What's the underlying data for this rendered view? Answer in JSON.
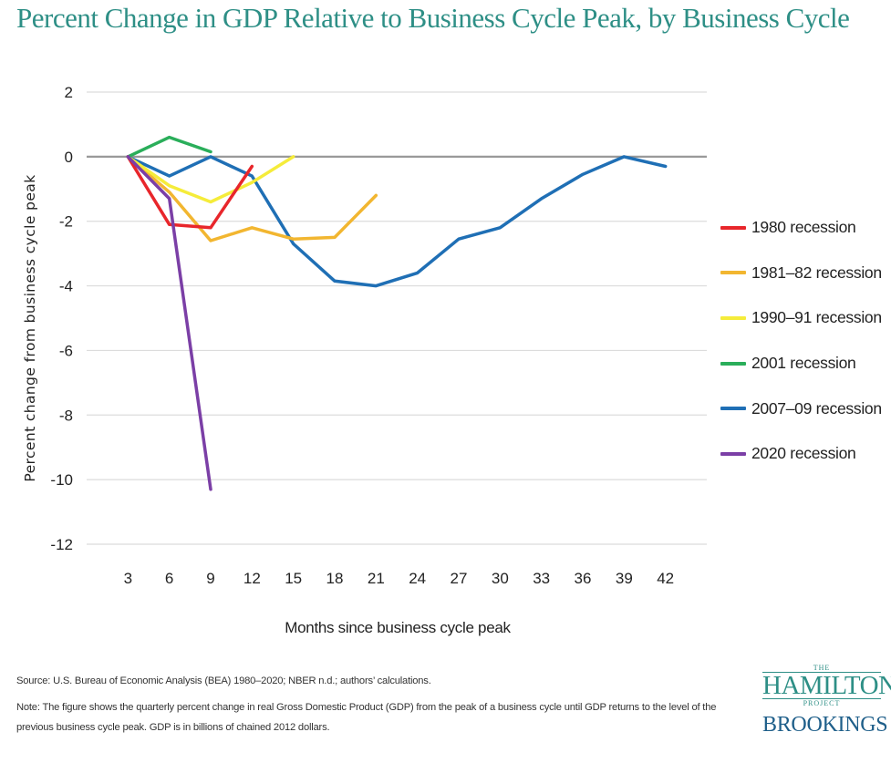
{
  "title": "Percent Change in GDP Relative to Business Cycle Peak, by Business Cycle",
  "chart_data": {
    "type": "line",
    "title": "Percent Change in GDP Relative to Business Cycle Peak, by Business Cycle",
    "xlabel": "Months since business cycle peak",
    "ylabel": "Percent change from business cycle peak",
    "x_ticks": [
      3,
      6,
      9,
      12,
      15,
      18,
      21,
      24,
      27,
      30,
      33,
      36,
      39,
      42
    ],
    "y_ticks": [
      2,
      0,
      -2,
      -4,
      -6,
      -8,
      -10,
      -12
    ],
    "xlim": [
      0,
      45
    ],
    "ylim": [
      -12,
      2
    ],
    "grid": true,
    "legend_position": "right",
    "series": [
      {
        "name": "1980 recession",
        "color": "#e8262b",
        "x": [
          3,
          6,
          9,
          12
        ],
        "y": [
          0,
          -2.1,
          -2.2,
          -0.3
        ]
      },
      {
        "name": "1981–82 recession",
        "color": "#f2b630",
        "x": [
          3,
          6,
          9,
          12,
          15,
          18,
          21
        ],
        "y": [
          0,
          -1.1,
          -2.6,
          -2.2,
          -2.55,
          -2.5,
          -1.2
        ]
      },
      {
        "name": "1990–91 recession",
        "color": "#f5ec3a",
        "x": [
          3,
          6,
          9,
          12,
          15
        ],
        "y": [
          0,
          -0.9,
          -1.4,
          -0.8,
          0
        ]
      },
      {
        "name": "2001 recession",
        "color": "#2aae5a",
        "x": [
          3,
          6,
          9
        ],
        "y": [
          0,
          0.6,
          0.15
        ]
      },
      {
        "name": "2007–09 recession",
        "color": "#1f6fb5",
        "x": [
          3,
          6,
          9,
          12,
          15,
          18,
          21,
          24,
          27,
          30,
          33,
          36,
          39,
          42
        ],
        "y": [
          0,
          -0.6,
          0,
          -0.6,
          -2.7,
          -3.85,
          -4.0,
          -3.6,
          -2.55,
          -2.2,
          -1.3,
          -0.55,
          0,
          -0.3
        ]
      },
      {
        "name": "2020 recession",
        "color": "#7b3fa6",
        "x": [
          3,
          6,
          9
        ],
        "y": [
          0,
          -1.3,
          -10.3
        ]
      }
    ]
  },
  "source": "Source: U.S. Bureau of Economic Analysis (BEA) 1980–2020; NBER n.d.; authors’ calculations.",
  "note": "Note: The figure shows the quarterly percent change in real Gross Domestic Product (GDP) from the peak of a business cycle until GDP returns to the level of the previous business cycle peak. GDP is in billions of chained 2012 dollars.",
  "logo": {
    "the": "THE",
    "hamilton": "HAMILTON",
    "project": "PROJECT",
    "brookings": "BROOKINGS"
  }
}
